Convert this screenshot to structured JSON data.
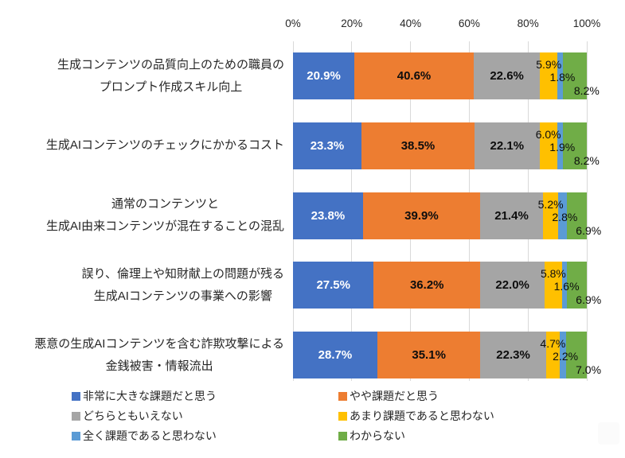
{
  "chart_data": {
    "type": "bar",
    "orientation": "horizontal",
    "stacked": true,
    "unit": "%",
    "xlim": [
      0,
      100
    ],
    "grid": true,
    "legend_position": "bottom",
    "axis_ticks": [
      "0%",
      "20%",
      "40%",
      "60%",
      "80%",
      "100%"
    ],
    "categories": [
      [
        "生成コンテンツの品質向上のための職員の",
        "プロンプト作成スキル向上"
      ],
      [
        "生成AIコンテンツのチェックにかかるコスト"
      ],
      [
        "通常のコンテンツと",
        "生成AI由来コンテンツが混在することの混乱"
      ],
      [
        "誤り、倫理上や知財献上の問題が残る",
        "生成AIコンテンツの事業への影響"
      ],
      [
        "悪意の生成AIコンテンツを含む詐欺攻撃による",
        "金銭被害・情報流出"
      ]
    ],
    "series": [
      {
        "name": "非常に大きな課題だと思う",
        "color": "#4472C4",
        "label_style": "inside-bold-white",
        "values": [
          20.9,
          23.3,
          23.8,
          27.5,
          28.7
        ]
      },
      {
        "name": "やや課題だと思う",
        "color": "#ED7D31",
        "label_style": "inside-bold-black",
        "values": [
          40.6,
          38.5,
          39.9,
          36.2,
          35.1
        ]
      },
      {
        "name": "どちらともいえない",
        "color": "#A5A5A5",
        "label_style": "inside-bold-black",
        "values": [
          22.6,
          22.1,
          21.4,
          22.0,
          22.3
        ]
      },
      {
        "name": "あまり課題であると思わない",
        "color": "#FFC000",
        "label_style": "small-staggered",
        "values": [
          5.9,
          6.0,
          5.2,
          5.8,
          4.7
        ]
      },
      {
        "name": "全く課題であると思わない",
        "color": "#5B9BD5",
        "label_style": "small-staggered",
        "values": [
          1.8,
          1.9,
          2.8,
          1.6,
          2.2
        ]
      },
      {
        "name": "わからない",
        "color": "#70AD47",
        "label_style": "small-staggered",
        "values": [
          8.2,
          8.2,
          6.9,
          6.9,
          7.0
        ]
      }
    ],
    "colors": {
      "gridline": "#D9D9D9",
      "text": "#262626",
      "label_on_blue": "#FFFFFF",
      "label_default": "#0D0D0D"
    }
  }
}
